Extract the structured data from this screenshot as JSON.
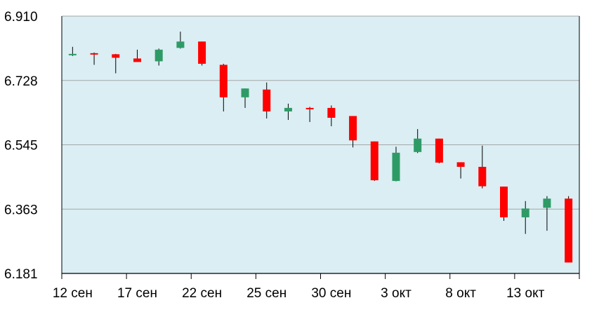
{
  "chart_data": {
    "type": "candlestick",
    "title": "",
    "xlabel": "",
    "ylabel": "",
    "ylim": [
      6.181,
      6.91
    ],
    "yticks": [
      "6.910",
      "6.728",
      "6.545",
      "6.363",
      "6.181"
    ],
    "xticks": [
      {
        "label": "12 сен",
        "index": 0
      },
      {
        "label": "17 сен",
        "index": 3
      },
      {
        "label": "22 сен",
        "index": 6
      },
      {
        "label": "25 сен",
        "index": 9
      },
      {
        "label": "30 сен",
        "index": 12
      },
      {
        "label": "3 окт",
        "index": 15
      },
      {
        "label": "8 окт",
        "index": 18
      },
      {
        "label": "13 окт",
        "index": 21
      }
    ],
    "grid": true,
    "colors": {
      "up": "#2e9b66",
      "down": "#ff0000",
      "plot_background": "#daeef3",
      "grid": "#a6a6a6",
      "wick": "#000000"
    },
    "candles": [
      {
        "open": 6.8,
        "high": 6.823,
        "low": 6.797,
        "close": 6.803
      },
      {
        "open": 6.805,
        "high": 6.807,
        "low": 6.772,
        "close": 6.803
      },
      {
        "open": 6.802,
        "high": 6.803,
        "low": 6.748,
        "close": 6.792
      },
      {
        "open": 6.79,
        "high": 6.815,
        "low": 6.785,
        "close": 6.78
      },
      {
        "open": 6.782,
        "high": 6.818,
        "low": 6.77,
        "close": 6.815
      },
      {
        "open": 6.82,
        "high": 6.866,
        "low": 6.818,
        "close": 6.838
      },
      {
        "open": 6.838,
        "high": 6.838,
        "low": 6.77,
        "close": 6.775
      },
      {
        "open": 6.772,
        "high": 6.775,
        "low": 6.64,
        "close": 6.68
      },
      {
        "open": 6.68,
        "high": 6.705,
        "low": 6.65,
        "close": 6.705
      },
      {
        "open": 6.702,
        "high": 6.722,
        "low": 6.62,
        "close": 6.64
      },
      {
        "open": 6.64,
        "high": 6.662,
        "low": 6.616,
        "close": 6.65
      },
      {
        "open": 6.65,
        "high": 6.653,
        "low": 6.61,
        "close": 6.648
      },
      {
        "open": 6.65,
        "high": 6.657,
        "low": 6.598,
        "close": 6.622
      },
      {
        "open": 6.627,
        "high": 6.627,
        "low": 6.538,
        "close": 6.558
      },
      {
        "open": 6.555,
        "high": 6.555,
        "low": 6.443,
        "close": 6.445
      },
      {
        "open": 6.443,
        "high": 6.54,
        "low": 6.442,
        "close": 6.523
      },
      {
        "open": 6.525,
        "high": 6.59,
        "low": 6.522,
        "close": 6.563
      },
      {
        "open": 6.563,
        "high": 6.563,
        "low": 6.493,
        "close": 6.495
      },
      {
        "open": 6.496,
        "high": 6.496,
        "low": 6.45,
        "close": 6.483
      },
      {
        "open": 6.483,
        "high": 6.543,
        "low": 6.422,
        "close": 6.428
      },
      {
        "open": 6.427,
        "high": 6.427,
        "low": 6.33,
        "close": 6.34
      },
      {
        "open": 6.34,
        "high": 6.386,
        "low": 6.293,
        "close": 6.365
      },
      {
        "open": 6.367,
        "high": 6.4,
        "low": 6.302,
        "close": 6.393
      },
      {
        "open": 6.393,
        "high": 6.4,
        "low": 6.212,
        "close": 6.212
      }
    ]
  }
}
